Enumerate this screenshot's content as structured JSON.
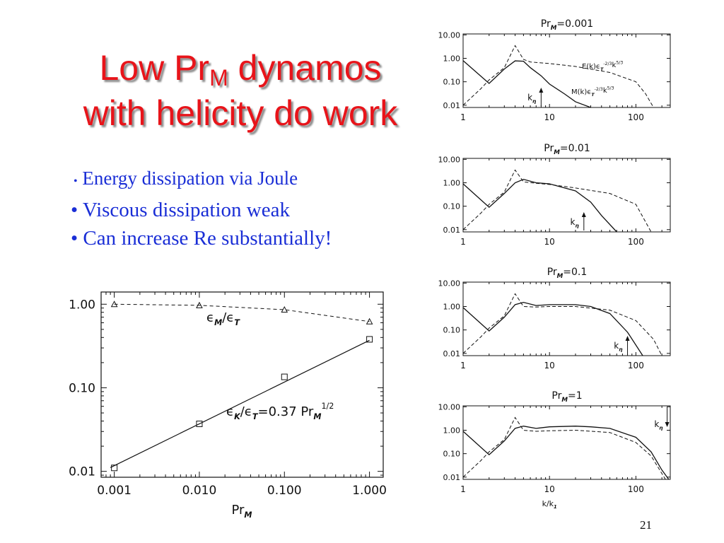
{
  "title": {
    "line1_pre": "Low Pr",
    "line1_sub": "M",
    "line1_post": " dynamos",
    "line2": "with helicity do work"
  },
  "bullets": [
    {
      "marker": "•",
      "text": "Energy dissipation via Joule"
    },
    {
      "marker": "•",
      "text": "Viscous dissipation weak"
    },
    {
      "marker": "•",
      "text": "Can increase Re substantially!"
    }
  ],
  "page_number": "21",
  "colors": {
    "title": "#e8141a",
    "bullets": "#1a2ed6",
    "ink": "#111111"
  },
  "chart_data": [
    {
      "type": "scatter",
      "title": "",
      "x_scale": "log",
      "y_scale": "log",
      "xlim": [
        0.0007,
        1.45
      ],
      "ylim": [
        0.0085,
        1.4
      ],
      "xticks": [
        0.001,
        0.01,
        0.1,
        1.0
      ],
      "xtick_labels": [
        "0.001",
        "0.010",
        "0.100",
        "1.000"
      ],
      "yticks": [
        0.01,
        0.1,
        1.0
      ],
      "ytick_labels": [
        "0.01",
        "0.10",
        "1.00"
      ],
      "xlabel": {
        "main": "Pr",
        "sub": "M"
      },
      "series": [
        {
          "name": "εM/εT",
          "marker": "triangle",
          "line": "dashed",
          "x": [
            0.001,
            0.01,
            0.1,
            1.0
          ],
          "y": [
            1.0,
            0.97,
            0.86,
            0.62
          ]
        },
        {
          "name": "εK/εT",
          "marker": "square",
          "line": "none",
          "x": [
            0.001,
            0.01,
            0.1,
            1.0
          ],
          "y": [
            0.011,
            0.037,
            0.135,
            0.38
          ]
        }
      ],
      "fit": {
        "coefficient": 0.37,
        "exponent": 0.5,
        "x_range": [
          0.0009,
          1.0
        ]
      },
      "annotations": {
        "em_eps": "ϵ",
        "em_sub": "M",
        "em_mid": "/ϵ",
        "em_sub2": "T",
        "ek_eps": "ϵ",
        "ek_sub": "K",
        "ek_mid": "/ϵ",
        "ek_sub2": "T",
        "ek_rhs": "=0.37 Pr",
        "ek_sub3": "M",
        "ek_sup": "1/2"
      }
    },
    {
      "type": "line",
      "title": "Pr_M=0.001",
      "title_parts": {
        "pre": "Pr",
        "sub": "M",
        "post": "=0.001"
      },
      "x_scale": "log",
      "y_scale": "log",
      "xlim": [
        1,
        250
      ],
      "ylim": [
        0.008,
        11
      ],
      "xtick_labels": [
        "1",
        "10",
        "100"
      ],
      "ytick_labels": [
        "10.00",
        "1.00",
        "0.10",
        "0.01"
      ],
      "legend_labels": {
        "E": "E(k)ϵT^-2/3 k^5/3",
        "M": "M(k)ϵT^-2/3 k^5/3"
      },
      "k_eta": {
        "label": "kη",
        "x": 8,
        "direction": "up"
      },
      "series": [
        {
          "name": "M(k)ϵT^-2/3 k^5/3",
          "line": "solid",
          "x": [
            1,
            2,
            3,
            4,
            5,
            6,
            8,
            10,
            15,
            20,
            30
          ],
          "y": [
            0.8,
            0.085,
            0.35,
            0.78,
            0.75,
            0.4,
            0.18,
            0.08,
            0.03,
            0.014,
            0.008
          ]
        },
        {
          "name": "E(k)ϵT^-2/3 k^5/3",
          "line": "dashed",
          "x": [
            1,
            1.6,
            2,
            3,
            4,
            5,
            6,
            10,
            20,
            50,
            100,
            130,
            160
          ],
          "y": [
            0.01,
            0.05,
            0.12,
            0.4,
            3.5,
            0.9,
            0.7,
            0.6,
            0.45,
            0.25,
            0.1,
            0.03,
            0.008
          ]
        }
      ]
    },
    {
      "type": "line",
      "title": "Pr_M=0.01",
      "title_parts": {
        "pre": "Pr",
        "sub": "M",
        "post": "=0.01"
      },
      "x_scale": "log",
      "y_scale": "log",
      "xlim": [
        1,
        250
      ],
      "ylim": [
        0.008,
        11
      ],
      "xtick_labels": [
        "1",
        "10",
        "100"
      ],
      "ytick_labels": [
        "10.00",
        "1.00",
        "0.10",
        "0.01"
      ],
      "k_eta": {
        "label": "kη",
        "x": 25,
        "direction": "up"
      },
      "series": [
        {
          "name": "solid",
          "line": "solid",
          "x": [
            1,
            2,
            3,
            4,
            5,
            7,
            10,
            20,
            30,
            40,
            60
          ],
          "y": [
            0.9,
            0.09,
            0.35,
            1.0,
            1.4,
            1.0,
            0.9,
            0.45,
            0.15,
            0.04,
            0.008
          ]
        },
        {
          "name": "dashed",
          "line": "dashed",
          "x": [
            1,
            1.6,
            2,
            3,
            4,
            5,
            7,
            10,
            20,
            50,
            100,
            150
          ],
          "y": [
            0.01,
            0.05,
            0.12,
            0.4,
            3.5,
            1.1,
            0.95,
            0.85,
            0.6,
            0.35,
            0.12,
            0.008
          ]
        }
      ]
    },
    {
      "type": "line",
      "title": "Pr_M=0.1",
      "title_parts": {
        "pre": "Pr",
        "sub": "M",
        "post": "=0.1"
      },
      "x_scale": "log",
      "y_scale": "log",
      "xlim": [
        1,
        250
      ],
      "ylim": [
        0.008,
        11
      ],
      "xtick_labels": [
        "1",
        "10",
        "100"
      ],
      "ytick_labels": [
        "10.00",
        "1.00",
        "0.10",
        "0.01"
      ],
      "k_eta": {
        "label": "kη",
        "x": 80,
        "direction": "up"
      },
      "series": [
        {
          "name": "solid",
          "line": "solid",
          "x": [
            1,
            2,
            3,
            4,
            5,
            7,
            10,
            20,
            30,
            50,
            80,
            120
          ],
          "y": [
            0.9,
            0.09,
            0.35,
            1.2,
            1.5,
            1.1,
            1.2,
            1.2,
            1.0,
            0.5,
            0.08,
            0.008
          ]
        },
        {
          "name": "dashed",
          "line": "dashed",
          "x": [
            1,
            1.6,
            2,
            3,
            4,
            5,
            7,
            10,
            20,
            50,
            100,
            160,
            200
          ],
          "y": [
            0.01,
            0.05,
            0.12,
            0.4,
            3.5,
            1.0,
            0.95,
            1.0,
            1.0,
            0.7,
            0.25,
            0.04,
            0.008
          ]
        }
      ]
    },
    {
      "type": "line",
      "title": "Pr_M=1",
      "title_parts": {
        "pre": "Pr",
        "sub": "M",
        "post": "=1"
      },
      "x_scale": "log",
      "y_scale": "log",
      "xlim": [
        1,
        250
      ],
      "ylim": [
        0.008,
        11
      ],
      "xtick_labels": [
        "1",
        "10",
        "100"
      ],
      "ytick_labels": [
        "10.00",
        "1.00",
        "0.10",
        "0.01"
      ],
      "xlabel": {
        "main": "k/k",
        "sub": "1"
      },
      "k_eta": {
        "label": "kη",
        "x": 230,
        "direction": "down"
      },
      "series": [
        {
          "name": "solid",
          "line": "solid",
          "x": [
            1,
            2,
            3,
            4,
            5,
            7,
            10,
            20,
            30,
            50,
            100,
            150,
            200,
            240
          ],
          "y": [
            0.9,
            0.09,
            0.35,
            1.2,
            1.5,
            1.2,
            1.4,
            1.5,
            1.4,
            1.2,
            0.5,
            0.12,
            0.02,
            0.008
          ]
        },
        {
          "name": "dashed",
          "line": "dashed",
          "x": [
            1,
            1.6,
            2,
            3,
            4,
            5,
            7,
            10,
            20,
            50,
            100,
            150,
            220
          ],
          "y": [
            0.01,
            0.05,
            0.12,
            0.4,
            3.5,
            1.0,
            0.9,
            0.95,
            1.0,
            0.8,
            0.3,
            0.08,
            0.008
          ]
        }
      ]
    }
  ]
}
